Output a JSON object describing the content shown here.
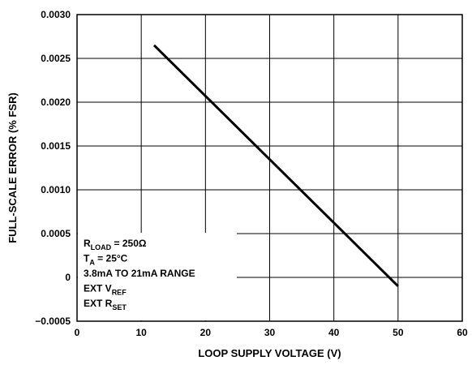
{
  "chart_data": {
    "type": "line",
    "xlabel": "LOOP SUPPLY VOLTAGE (V)",
    "ylabel": "FULL-SCALE ERROR (% FSR)",
    "xlim": [
      0,
      60
    ],
    "ylim": [
      -0.0005,
      0.003
    ],
    "x_ticks": [
      "0",
      "10",
      "20",
      "30",
      "40",
      "50",
      "60"
    ],
    "x_tick_values": [
      0,
      10,
      20,
      30,
      40,
      50,
      60
    ],
    "y_ticks": [
      "0.0030",
      "0.0025",
      "0.0020",
      "0.0015",
      "0.0010",
      "0.0005",
      "0",
      "−0.0005"
    ],
    "y_tick_values": [
      0.003,
      0.0025,
      0.002,
      0.0015,
      0.001,
      0.0005,
      0,
      -0.0005
    ],
    "grid": true,
    "series": [
      {
        "x": [
          12,
          50
        ],
        "y": [
          0.00265,
          -0.0001
        ]
      }
    ],
    "annotations": [
      {
        "main": "R",
        "sub": "LOAD",
        "rest": " = 250Ω"
      },
      {
        "main": "T",
        "sub": "A",
        "rest": " = 25°C"
      },
      {
        "main": "3.8mA TO 21mA RANGE",
        "sub": "",
        "rest": ""
      },
      {
        "main": "EXT V",
        "sub": "REF",
        "rest": ""
      },
      {
        "main": "EXT R",
        "sub": "SET",
        "rest": ""
      }
    ]
  }
}
